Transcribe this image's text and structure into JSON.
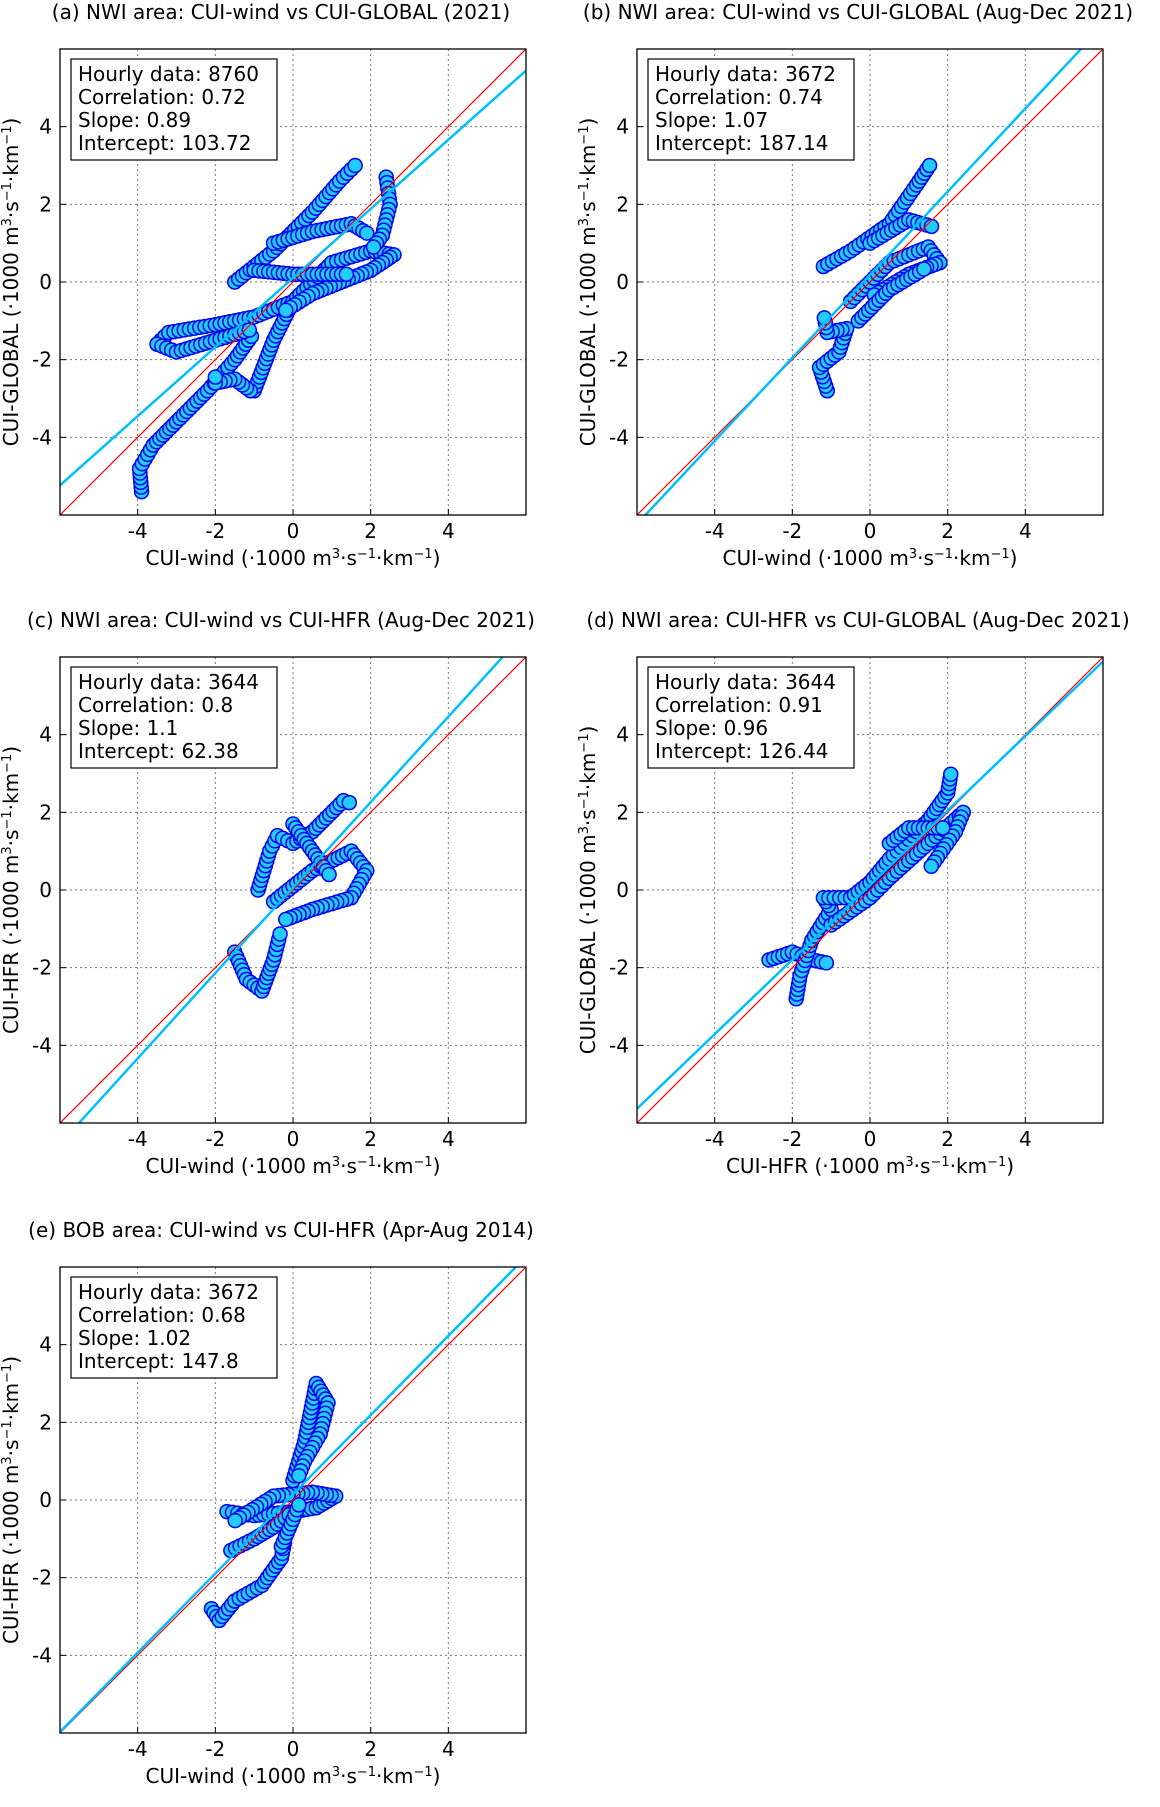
{
  "chart_data": [
    {
      "type": "scatter",
      "title": "(a) NWI area: CUI-wind vs CUI-GLOBAL (2021)",
      "xlabel": [
        "CUI-wind (·1000 m",
        "3",
        "·s",
        "−1",
        "·km",
        "−1",
        ")"
      ],
      "ylabel": [
        "CUI-GLOBAL (·1000 m",
        "3",
        "·s",
        "−1",
        "·km",
        "−1",
        ")"
      ],
      "xlim": [
        -6,
        6
      ],
      "ylim": [
        -6,
        6
      ],
      "ticks": [
        -4,
        -2,
        0,
        2,
        4
      ],
      "tick_labels": [
        "-4",
        "-2",
        "0",
        "2",
        "4"
      ],
      "grid": true,
      "stats": [
        "Hourly data: 8760",
        "Correlation: 0.72",
        "Slope: 0.89",
        "Intercept: 103.72"
      ],
      "fit": {
        "slope": 0.89,
        "intercept": 0.10372
      },
      "identity_line": true,
      "tracks": [
        [
          [
            -3.9,
            -5.4
          ],
          [
            -3.95,
            -4.8
          ],
          [
            -3.6,
            -4.2
          ],
          [
            -3,
            -3.6
          ],
          [
            -2.2,
            -2.8
          ],
          [
            -1.5,
            -2.0
          ],
          [
            -1,
            -1.3
          ]
        ],
        [
          [
            -3.5,
            -1.6
          ],
          [
            -3.2,
            -1.3
          ],
          [
            -2,
            -1.1
          ],
          [
            -1,
            -0.9
          ],
          [
            0,
            -0.5
          ]
        ],
        [
          [
            -3.5,
            -1.6
          ],
          [
            -3,
            -1.8
          ],
          [
            -2,
            -1.5
          ],
          [
            -1,
            -1.2
          ]
        ],
        [
          [
            -1.5,
            0
          ],
          [
            -0.5,
            0.8
          ],
          [
            0.5,
            1.8
          ],
          [
            1.2,
            2.6
          ],
          [
            1.7,
            3.1
          ]
        ],
        [
          [
            -1,
            -2.8
          ],
          [
            -0.5,
            -1.5
          ],
          [
            0,
            -0.5
          ],
          [
            1,
            0.5
          ],
          [
            2,
            0.8
          ],
          [
            2.6,
            0.7
          ],
          [
            2,
            0.3
          ],
          [
            0.5,
            -0.3
          ],
          [
            -0.3,
            -0.8
          ]
        ],
        [
          [
            2.4,
            2.7
          ],
          [
            2.5,
            2
          ],
          [
            2.3,
            1.2
          ],
          [
            2,
            0.8
          ]
        ],
        [
          [
            -1.1,
            -2.8
          ],
          [
            -1.5,
            -2.5
          ],
          [
            -2,
            -2.6
          ],
          [
            -2,
            -2.3
          ]
        ],
        [
          [
            -0.5,
            1.0
          ],
          [
            0.5,
            1.3
          ],
          [
            1.5,
            1.5
          ],
          [
            2,
            1.2
          ]
        ],
        [
          [
            -1,
            0.3
          ],
          [
            0,
            0.2
          ],
          [
            1.5,
            0.2
          ]
        ]
      ]
    },
    {
      "type": "scatter",
      "title": "(b) NWI area: CUI-wind vs CUI-GLOBAL (Aug-Dec 2021)",
      "xlabel": [
        "CUI-wind (·1000 m",
        "3",
        "·s",
        "−1",
        "·km",
        "−1",
        ")"
      ],
      "ylabel": [
        "CUI-GLOBAL (·1000 m",
        "3",
        "·s",
        "−1",
        "·km",
        "−1",
        ")"
      ],
      "xlim": [
        -6,
        6
      ],
      "ylim": [
        -6,
        6
      ],
      "ticks": [
        -4,
        -2,
        0,
        2,
        4
      ],
      "tick_labels": [
        "-4",
        "-2",
        "0",
        "2",
        "4"
      ],
      "grid": true,
      "stats": [
        "Hourly data: 3672",
        "Correlation: 0.74",
        "Slope: 1.07",
        "Intercept: 187.14"
      ],
      "fit": {
        "slope": 1.07,
        "intercept": 0.18714
      },
      "identity_line": true,
      "tracks": [
        [
          [
            -1.1,
            -2.8
          ],
          [
            -1.3,
            -2.2
          ],
          [
            -0.8,
            -1.8
          ],
          [
            -0.6,
            -1.2
          ],
          [
            -1.1,
            -1.3
          ],
          [
            -1.2,
            -0.8
          ]
        ],
        [
          [
            -1.2,
            0.4
          ],
          [
            -0.5,
            0.8
          ],
          [
            0.5,
            1.5
          ],
          [
            1.2,
            2.5
          ],
          [
            1.6,
            3.1
          ]
        ],
        [
          [
            -0.5,
            -0.5
          ],
          [
            0,
            0
          ],
          [
            0.5,
            0.5
          ],
          [
            1.5,
            0.9
          ],
          [
            1.8,
            0.5
          ],
          [
            1,
            0.2
          ],
          [
            0,
            -0.4
          ]
        ],
        [
          [
            0,
            1.0
          ],
          [
            1,
            1.6
          ],
          [
            1.7,
            1.4
          ]
        ],
        [
          [
            -0.3,
            -1.0
          ],
          [
            0.5,
            -0.2
          ],
          [
            1.5,
            0.4
          ]
        ]
      ]
    },
    {
      "type": "scatter",
      "title": "(c) NWI area: CUI-wind vs CUI-HFR (Aug-Dec 2021)",
      "xlabel": [
        "CUI-wind (·1000 m",
        "3",
        "·s",
        "−1",
        "·km",
        "−1",
        ")"
      ],
      "ylabel": [
        "CUI-HFR (·1000 m",
        "3",
        "·s",
        "−1",
        "·km",
        "−1",
        ")"
      ],
      "xlim": [
        -6,
        6
      ],
      "ylim": [
        -6,
        6
      ],
      "ticks": [
        -4,
        -2,
        0,
        2,
        4
      ],
      "tick_labels": [
        "-4",
        "-2",
        "0",
        "2",
        "4"
      ],
      "grid": true,
      "stats": [
        "Hourly data: 3644",
        "Correlation: 0.8",
        "Slope: 1.1",
        "Intercept: 62.38"
      ],
      "fit": {
        "slope": 1.1,
        "intercept": 0.06238
      },
      "identity_line": true,
      "tracks": [
        [
          [
            -1.5,
            -1.6
          ],
          [
            -1.2,
            -2.3
          ],
          [
            -0.8,
            -2.6
          ],
          [
            -0.5,
            -1.8
          ],
          [
            -0.3,
            -1.0
          ]
        ],
        [
          [
            -0.9,
            0
          ],
          [
            -0.6,
            1.0
          ],
          [
            -0.4,
            1.4
          ],
          [
            0,
            1.2
          ],
          [
            0.5,
            1.5
          ],
          [
            1.3,
            2.3
          ],
          [
            1.6,
            2.2
          ]
        ],
        [
          [
            -0.5,
            -0.3
          ],
          [
            0.5,
            0.5
          ],
          [
            1.5,
            1.0
          ],
          [
            1.9,
            0.5
          ],
          [
            1.5,
            -0.2
          ],
          [
            0.5,
            -0.5
          ],
          [
            -0.3,
            -0.8
          ]
        ],
        [
          [
            0,
            1.7
          ],
          [
            0.5,
            1.0
          ],
          [
            1,
            0.3
          ]
        ]
      ]
    },
    {
      "type": "scatter",
      "title": "(d) NWI area: CUI-HFR vs CUI-GLOBAL (Aug-Dec 2021)",
      "xlabel": [
        "CUI-HFR (·1000 m",
        "3",
        "·s",
        "−1",
        "·km",
        "−1",
        ")"
      ],
      "ylabel": [
        "CUI-GLOBAL (·1000 m",
        "3",
        "·s",
        "−1",
        "·km",
        "−1",
        ")"
      ],
      "xlim": [
        -6,
        6
      ],
      "ylim": [
        -6,
        6
      ],
      "ticks": [
        -4,
        -2,
        0,
        2,
        4
      ],
      "tick_labels": [
        "-4",
        "-2",
        "0",
        "2",
        "4"
      ],
      "grid": true,
      "stats": [
        "Hourly data: 3644",
        "Correlation: 0.91",
        "Slope: 0.96",
        "Intercept: 126.44"
      ],
      "fit": {
        "slope": 0.96,
        "intercept": 0.12644
      },
      "identity_line": true,
      "tracks": [
        [
          [
            -2.6,
            -1.8
          ],
          [
            -2,
            -1.6
          ],
          [
            -1.5,
            -1.8
          ],
          [
            -1,
            -1.9
          ]
        ],
        [
          [
            -1.9,
            -2.8
          ],
          [
            -1.8,
            -2.2
          ],
          [
            -1.5,
            -1.3
          ],
          [
            -1,
            -0.5
          ],
          [
            -1.2,
            -0.2
          ],
          [
            -0.5,
            -0.2
          ],
          [
            0,
            0.2
          ],
          [
            0.5,
            0.8
          ],
          [
            1,
            1.3
          ],
          [
            1.5,
            1.8
          ],
          [
            2,
            2.5
          ],
          [
            2.1,
            3.1
          ]
        ],
        [
          [
            -1,
            -0.9
          ],
          [
            0,
            -0.2
          ],
          [
            0.5,
            0.3
          ],
          [
            1.5,
            1.2
          ],
          [
            2.4,
            2.0
          ],
          [
            2.2,
            1.5
          ],
          [
            1.5,
            0.5
          ]
        ],
        [
          [
            0.5,
            1.2
          ],
          [
            1,
            1.6
          ],
          [
            2,
            1.6
          ]
        ]
      ]
    },
    {
      "type": "scatter",
      "title": "(e) BOB area: CUI-wind vs CUI-HFR (Apr-Aug 2014)",
      "xlabel": [
        "CUI-wind (·1000 m",
        "3",
        "·s",
        "−1",
        "·km",
        "−1",
        ")"
      ],
      "ylabel": [
        "CUI-HFR (·1000 m",
        "3",
        "·s",
        "−1",
        "·km",
        "−1",
        ")"
      ],
      "xlim": [
        -6,
        6
      ],
      "ylim": [
        -6,
        6
      ],
      "ticks": [
        -4,
        -2,
        0,
        2,
        4
      ],
      "tick_labels": [
        "-4",
        "-2",
        "0",
        "2",
        "4"
      ],
      "grid": true,
      "stats": [
        "Hourly data: 3672",
        "Correlation: 0.68",
        "Slope: 1.02",
        "Intercept: 147.8"
      ],
      "fit": {
        "slope": 1.02,
        "intercept": 0.1478
      },
      "identity_line": true,
      "tracks": [
        [
          [
            -2.1,
            -2.8
          ],
          [
            -1.9,
            -3.1
          ],
          [
            -1.5,
            -2.6
          ],
          [
            -0.8,
            -2.2
          ],
          [
            -0.3,
            -1.5
          ],
          [
            -0.2,
            -1.0
          ]
        ],
        [
          [
            -1.7,
            -0.3
          ],
          [
            -1,
            -0.4
          ],
          [
            0,
            -0.3
          ],
          [
            0.6,
            -0.2
          ],
          [
            1.1,
            0.1
          ],
          [
            0.5,
            0.2
          ],
          [
            -0.5,
            0.1
          ],
          [
            -1.6,
            -0.6
          ]
        ],
        [
          [
            -1.6,
            -1.3
          ],
          [
            -1,
            -1.0
          ],
          [
            -0.5,
            -0.7
          ],
          [
            0,
            -0.3
          ]
        ],
        [
          [
            0,
            0.5
          ],
          [
            0.3,
            1.5
          ],
          [
            0.5,
            2.5
          ],
          [
            0.6,
            3.0
          ],
          [
            0.9,
            2.5
          ],
          [
            0.7,
            1.7
          ],
          [
            0.3,
            1.0
          ],
          [
            0.1,
            0.5
          ]
        ],
        [
          [
            -0.3,
            -1.2
          ],
          [
            0,
            -0.5
          ],
          [
            0.2,
            0
          ]
        ]
      ]
    }
  ],
  "colors": {
    "marker_fill": "#22ccff",
    "marker_edge": "#0000ee",
    "fit_line": "#00bfff",
    "identity_line": "#ff0000"
  }
}
